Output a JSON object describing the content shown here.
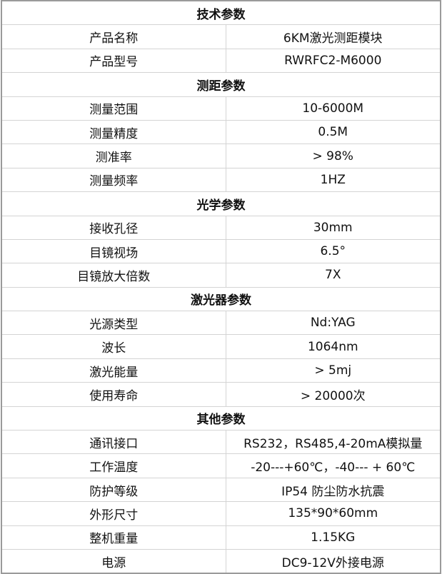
{
  "sections": [
    {
      "title": "技术参数",
      "rows": [
        [
          "产品名称",
          "6KM激光测距模块"
        ],
        [
          "产品型号",
          "RWRFC2-M6000"
        ]
      ]
    },
    {
      "title": "测距参数",
      "rows": [
        [
          "测量范围",
          "10-6000M"
        ],
        [
          "测量精度",
          "0.5M"
        ],
        [
          "测准率",
          "> 98%"
        ],
        [
          "测量频率",
          "1HZ"
        ]
      ]
    },
    {
      "title": "光学参数",
      "rows": [
        [
          "接收孔径",
          "30mm"
        ],
        [
          "目镜视场",
          "6.5°"
        ],
        [
          "目镜放大倍数",
          "7X"
        ]
      ]
    },
    {
      "title": "激光器参数",
      "rows": [
        [
          "光源类型",
          "Nd:YAG"
        ],
        [
          "波长",
          "1064nm"
        ],
        [
          "激光能量",
          "> 5mj"
        ],
        [
          "使用寿命",
          "> 20000次"
        ]
      ]
    },
    {
      "title": "其他参数",
      "rows": [
        [
          "通讯接口",
          "RS232，RS485,4-20mA模拟量"
        ],
        [
          "工作温度",
          "-20---+60℃，-40--- + 60℃"
        ],
        [
          "防护等级",
          "IP54 防尘防水抗震"
        ],
        [
          "外形尺寸",
          "135*90*60mm"
        ],
        [
          "整机重量",
          "1.15KG"
        ],
        [
          "电源",
          "DC9-12V外接电源"
        ]
      ]
    }
  ]
}
